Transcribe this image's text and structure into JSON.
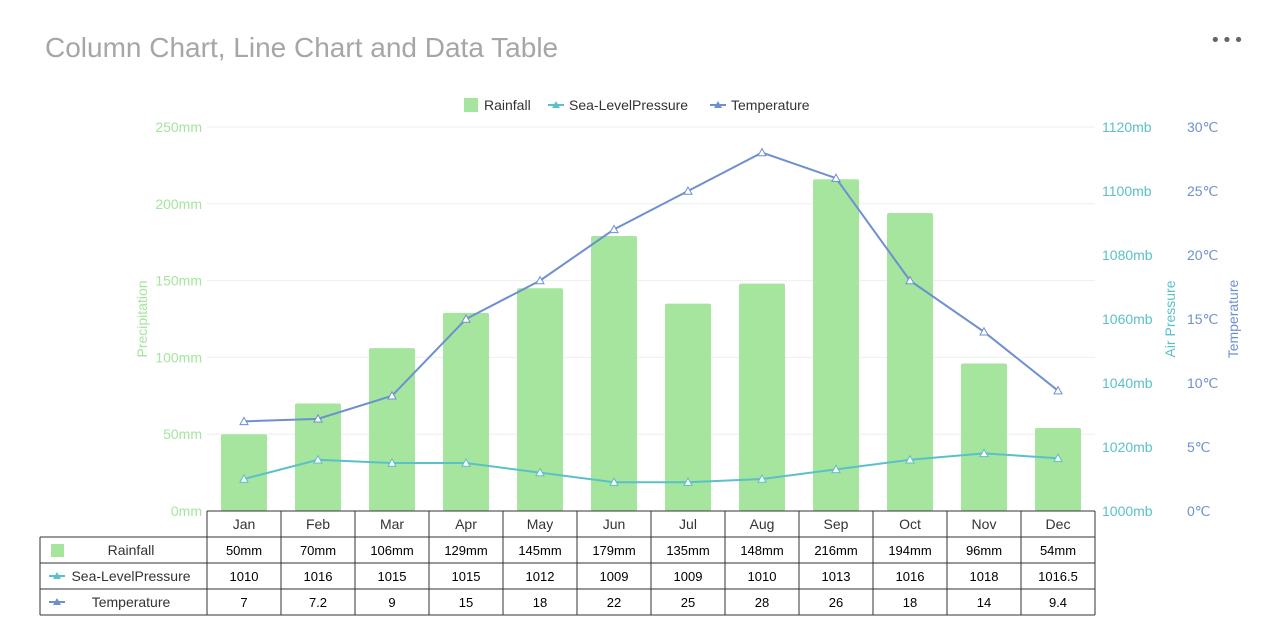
{
  "title": "Column Chart, Line Chart and Data Table",
  "menu_icon": "more-horizontal-icon",
  "menu_glyph": "•••",
  "colors": {
    "rainfall": "#a5e59d",
    "pressure": "#5bc0c9",
    "temperature": "#6e8fd0",
    "left_axis": "#a5e59d",
    "pressure_axis": "#5bc0c9",
    "temperature_axis": "#6e8fd0",
    "rainfall_values": "#e00000",
    "grid": "#eeeeee",
    "table_border": "#333333"
  },
  "chart_data": {
    "type": "bar",
    "categories": [
      "Jan",
      "Feb",
      "Mar",
      "Apr",
      "May",
      "Jun",
      "Jul",
      "Aug",
      "Sep",
      "Oct",
      "Nov",
      "Dec"
    ],
    "series": [
      {
        "name": "Rainfall",
        "type": "bar",
        "axis": "left",
        "values": [
          50,
          70,
          106,
          129,
          145,
          179,
          135,
          148,
          216,
          194,
          96,
          54
        ],
        "unit": "mm"
      },
      {
        "name": "Sea-LevelPressure",
        "type": "line",
        "axis": "right1",
        "values": [
          1010,
          1016,
          1015,
          1015,
          1012,
          1009,
          1009,
          1010,
          1013,
          1016,
          1018,
          1016.5
        ]
      },
      {
        "name": "Temperature",
        "type": "line",
        "axis": "right2",
        "values": [
          7,
          7.2,
          9,
          15,
          18,
          22,
          25,
          28,
          26,
          18,
          14,
          9.4
        ]
      }
    ],
    "axes": {
      "left": {
        "label": "Precipitation",
        "ticks": [
          "0mm",
          "50mm",
          "100mm",
          "150mm",
          "200mm",
          "250mm"
        ],
        "min": 0,
        "max": 250
      },
      "right1": {
        "label": "Air Pressure",
        "ticks": [
          "1000mb",
          "1020mb",
          "1040mb",
          "1060mb",
          "1080mb",
          "1100mb",
          "1120mb"
        ],
        "min": 1000,
        "max": 1120
      },
      "right2": {
        "label": "Temperature",
        "ticks": [
          "0℃",
          "5℃",
          "10℃",
          "15℃",
          "20℃",
          "25℃",
          "30℃"
        ],
        "min": 0,
        "max": 30
      }
    },
    "legend_position": "top-center",
    "grid": true,
    "table": {
      "rows": [
        {
          "label": "Rainfall",
          "values": [
            "50mm",
            "70mm",
            "106mm",
            "129mm",
            "145mm",
            "179mm",
            "135mm",
            "148mm",
            "216mm",
            "194mm",
            "96mm",
            "54mm"
          ]
        },
        {
          "label": "Sea-LevelPressure",
          "values": [
            "1010",
            "1016",
            "1015",
            "1015",
            "1012",
            "1009",
            "1009",
            "1010",
            "1013",
            "1016",
            "1018",
            "1016.5"
          ]
        },
        {
          "label": "Temperature",
          "values": [
            "7",
            "7.2",
            "9",
            "15",
            "18",
            "22",
            "25",
            "28",
            "26",
            "18",
            "14",
            "9.4"
          ]
        }
      ]
    }
  }
}
